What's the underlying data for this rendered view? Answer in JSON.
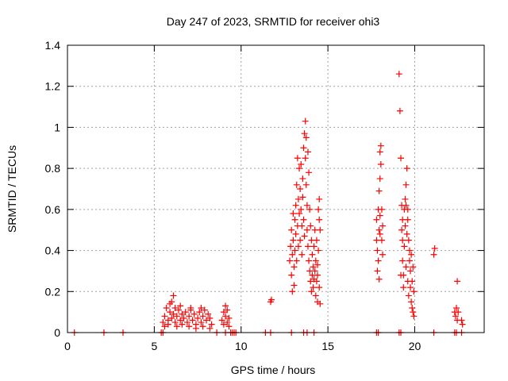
{
  "chart_data": {
    "type": "scatter",
    "title": "Day 247 of 2023, SRMTID for receiver ohi3",
    "xlabel": "GPS time / hours",
    "ylabel": "SRMTID / TECUs",
    "xlim": [
      0,
      24
    ],
    "ylim": [
      0,
      1.4
    ],
    "xticks": [
      0,
      5,
      10,
      15,
      20
    ],
    "xtick_labels": [
      "0",
      "5",
      "10",
      "15",
      "20"
    ],
    "yticks": [
      0,
      0.2,
      0.4,
      0.6,
      0.8,
      1,
      1.2,
      1.4
    ],
    "ytick_labels": [
      "0",
      "0.2",
      "0.4",
      "0.6",
      "0.8",
      "1",
      "1.2",
      "1.4"
    ],
    "grid": true,
    "marker": "+",
    "color": "#ff0000",
    "series": [
      {
        "name": "SRMTID",
        "points": [
          [
            0.4,
            0
          ],
          [
            2.1,
            0
          ],
          [
            3.2,
            0
          ],
          [
            5.4,
            0
          ],
          [
            5.5,
            0
          ],
          [
            8.6,
            0
          ],
          [
            9.1,
            0
          ],
          [
            9.4,
            0
          ],
          [
            9.5,
            0
          ],
          [
            9.6,
            0
          ],
          [
            9.7,
            0
          ],
          [
            11.4,
            0
          ],
          [
            11.7,
            0
          ],
          [
            12.9,
            0
          ],
          [
            13.6,
            0
          ],
          [
            13.8,
            0
          ],
          [
            14.2,
            0
          ],
          [
            17.8,
            0
          ],
          [
            17.9,
            0
          ],
          [
            19.1,
            0
          ],
          [
            19.2,
            0
          ],
          [
            21.1,
            0
          ],
          [
            22.3,
            0
          ],
          [
            22.4,
            0
          ],
          [
            22.7,
            0
          ],
          [
            5.5,
            0.05
          ],
          [
            5.6,
            0.08
          ],
          [
            5.7,
            0.12
          ],
          [
            5.8,
            0.06
          ],
          [
            5.9,
            0.1
          ],
          [
            6.0,
            0.15
          ],
          [
            6.0,
            0.07
          ],
          [
            6.1,
            0.18
          ],
          [
            6.1,
            0.09
          ],
          [
            6.2,
            0.12
          ],
          [
            6.2,
            0.05
          ],
          [
            6.3,
            0.08
          ],
          [
            6.4,
            0.11
          ],
          [
            6.5,
            0.06
          ],
          [
            6.6,
            0.09
          ],
          [
            6.7,
            0.07
          ],
          [
            6.8,
            0.1
          ],
          [
            6.9,
            0.05
          ],
          [
            7.0,
            0.08
          ],
          [
            7.1,
            0.12
          ],
          [
            7.2,
            0.06
          ],
          [
            7.3,
            0.09
          ],
          [
            7.4,
            0.04
          ],
          [
            7.5,
            0.07
          ],
          [
            7.6,
            0.1
          ],
          [
            7.7,
            0.05
          ],
          [
            7.8,
            0.08
          ],
          [
            7.9,
            0.11
          ],
          [
            8.0,
            0.06
          ],
          [
            8.1,
            0.09
          ],
          [
            8.2,
            0.07
          ],
          [
            8.3,
            0.04
          ],
          [
            5.6,
            0.03
          ],
          [
            5.8,
            0.04
          ],
          [
            6.3,
            0.03
          ],
          [
            6.6,
            0.04
          ],
          [
            7.0,
            0.03
          ],
          [
            7.4,
            0.02
          ],
          [
            7.8,
            0.03
          ],
          [
            8.2,
            0.02
          ],
          [
            5.9,
            0.14
          ],
          [
            6.5,
            0.13
          ],
          [
            7.1,
            0.11
          ],
          [
            7.7,
            0.12
          ],
          [
            8.9,
            0.06
          ],
          [
            9.0,
            0.1
          ],
          [
            9.0,
            0.04
          ],
          [
            9.1,
            0.13
          ],
          [
            9.1,
            0.08
          ],
          [
            9.2,
            0.11
          ],
          [
            9.2,
            0.05
          ],
          [
            9.3,
            0.07
          ],
          [
            9.3,
            0.03
          ],
          [
            11.7,
            0.15
          ],
          [
            11.75,
            0.16
          ],
          [
            12.8,
            0.35
          ],
          [
            12.85,
            0.42
          ],
          [
            12.9,
            0.5
          ],
          [
            12.9,
            0.28
          ],
          [
            12.95,
            0.38
          ],
          [
            12.95,
            0.2
          ],
          [
            13.0,
            0.58
          ],
          [
            13.0,
            0.45
          ],
          [
            13.05,
            0.32
          ],
          [
            13.05,
            0.23
          ],
          [
            13.1,
            0.55
          ],
          [
            13.1,
            0.4
          ],
          [
            13.15,
            0.62
          ],
          [
            13.15,
            0.48
          ],
          [
            13.2,
            0.35
          ],
          [
            13.2,
            0.72
          ],
          [
            13.25,
            0.85
          ],
          [
            13.25,
            0.52
          ],
          [
            13.3,
            0.42
          ],
          [
            13.3,
            0.65
          ],
          [
            13.35,
            0.8
          ],
          [
            13.35,
            0.58
          ],
          [
            13.4,
            0.45
          ],
          [
            13.4,
            0.7
          ],
          [
            13.45,
            0.82
          ],
          [
            13.45,
            0.6
          ],
          [
            13.5,
            0.52
          ],
          [
            13.5,
            0.38
          ],
          [
            13.55,
            0.75
          ],
          [
            13.55,
            0.66
          ],
          [
            13.6,
            0.9
          ],
          [
            13.6,
            0.55
          ],
          [
            13.65,
            0.47
          ],
          [
            13.65,
            0.97
          ],
          [
            13.7,
            1.03
          ],
          [
            13.7,
            0.85
          ],
          [
            13.75,
            0.95
          ],
          [
            13.75,
            0.72
          ],
          [
            13.8,
            0.62
          ],
          [
            13.8,
            0.5
          ],
          [
            13.85,
            0.88
          ],
          [
            13.85,
            0.42
          ],
          [
            13.9,
            0.78
          ],
          [
            13.9,
            0.35
          ],
          [
            13.95,
            0.6
          ],
          [
            13.95,
            0.3
          ],
          [
            14.0,
            0.52
          ],
          [
            14.0,
            0.25
          ],
          [
            14.05,
            0.45
          ],
          [
            14.05,
            0.2
          ],
          [
            14.1,
            0.38
          ],
          [
            14.1,
            0.28
          ],
          [
            14.15,
            0.32
          ],
          [
            14.15,
            0.22
          ],
          [
            14.2,
            0.42
          ],
          [
            14.2,
            0.26
          ],
          [
            14.25,
            0.5
          ],
          [
            14.25,
            0.3
          ],
          [
            14.3,
            0.35
          ],
          [
            14.3,
            0.18
          ],
          [
            14.35,
            0.45
          ],
          [
            14.35,
            0.25
          ],
          [
            14.4,
            0.28
          ],
          [
            14.4,
            0.15
          ],
          [
            14.45,
            0.6
          ],
          [
            14.45,
            0.4
          ],
          [
            14.5,
            0.55
          ],
          [
            14.5,
            0.22
          ],
          [
            14.55,
            0.5
          ],
          [
            14.55,
            0.14
          ],
          [
            14.5,
            0.65
          ],
          [
            14.4,
            0.33
          ],
          [
            17.8,
            0.55
          ],
          [
            17.8,
            0.45
          ],
          [
            17.85,
            0.4
          ],
          [
            17.85,
            0.3
          ],
          [
            17.9,
            0.6
          ],
          [
            17.9,
            0.35
          ],
          [
            17.95,
            0.5
          ],
          [
            17.95,
            0.26
          ],
          [
            18.0,
            0.48
          ],
          [
            18.0,
            0.75
          ],
          [
            18.0,
            0.88
          ],
          [
            18.05,
            0.82
          ],
          [
            18.05,
            0.91
          ],
          [
            18.1,
            0.6
          ],
          [
            18.1,
            0.45
          ],
          [
            18.15,
            0.38
          ],
          [
            18.15,
            0.52
          ],
          [
            17.95,
            0.69
          ],
          [
            18.0,
            0.57
          ],
          [
            19.1,
            1.26
          ],
          [
            19.15,
            1.08
          ],
          [
            19.2,
            0.85
          ],
          [
            19.25,
            0.62
          ],
          [
            19.25,
            0.5
          ],
          [
            19.3,
            0.45
          ],
          [
            19.3,
            0.35
          ],
          [
            19.35,
            0.28
          ],
          [
            19.35,
            0.22
          ],
          [
            19.4,
            0.6
          ],
          [
            19.4,
            0.42
          ],
          [
            19.45,
            0.65
          ],
          [
            19.45,
            0.52
          ],
          [
            19.5,
            0.72
          ],
          [
            19.5,
            0.32
          ],
          [
            19.55,
            0.8
          ],
          [
            19.55,
            0.48
          ],
          [
            19.6,
            0.25
          ],
          [
            19.6,
            0.55
          ],
          [
            19.65,
            0.45
          ],
          [
            19.65,
            0.18
          ],
          [
            19.7,
            0.35
          ],
          [
            19.7,
            0.4
          ],
          [
            19.75,
            0.22
          ],
          [
            19.75,
            0.3
          ],
          [
            19.8,
            0.15
          ],
          [
            19.8,
            0.38
          ],
          [
            19.85,
            0.12
          ],
          [
            19.85,
            0.25
          ],
          [
            19.9,
            0.1
          ],
          [
            19.9,
            0.32
          ],
          [
            19.95,
            0.2
          ],
          [
            19.95,
            0.08
          ],
          [
            19.3,
            0.55
          ],
          [
            19.5,
            0.62
          ],
          [
            19.6,
            0.6
          ],
          [
            19.2,
            0.28
          ],
          [
            21.1,
            0.38
          ],
          [
            21.15,
            0.41
          ],
          [
            22.3,
            0.1
          ],
          [
            22.35,
            0.08
          ],
          [
            22.4,
            0.12
          ],
          [
            22.45,
            0.06
          ],
          [
            22.5,
            0.1
          ],
          [
            22.45,
            0.25
          ],
          [
            22.7,
            0.06
          ],
          [
            22.75,
            0.04
          ]
        ]
      }
    ]
  }
}
